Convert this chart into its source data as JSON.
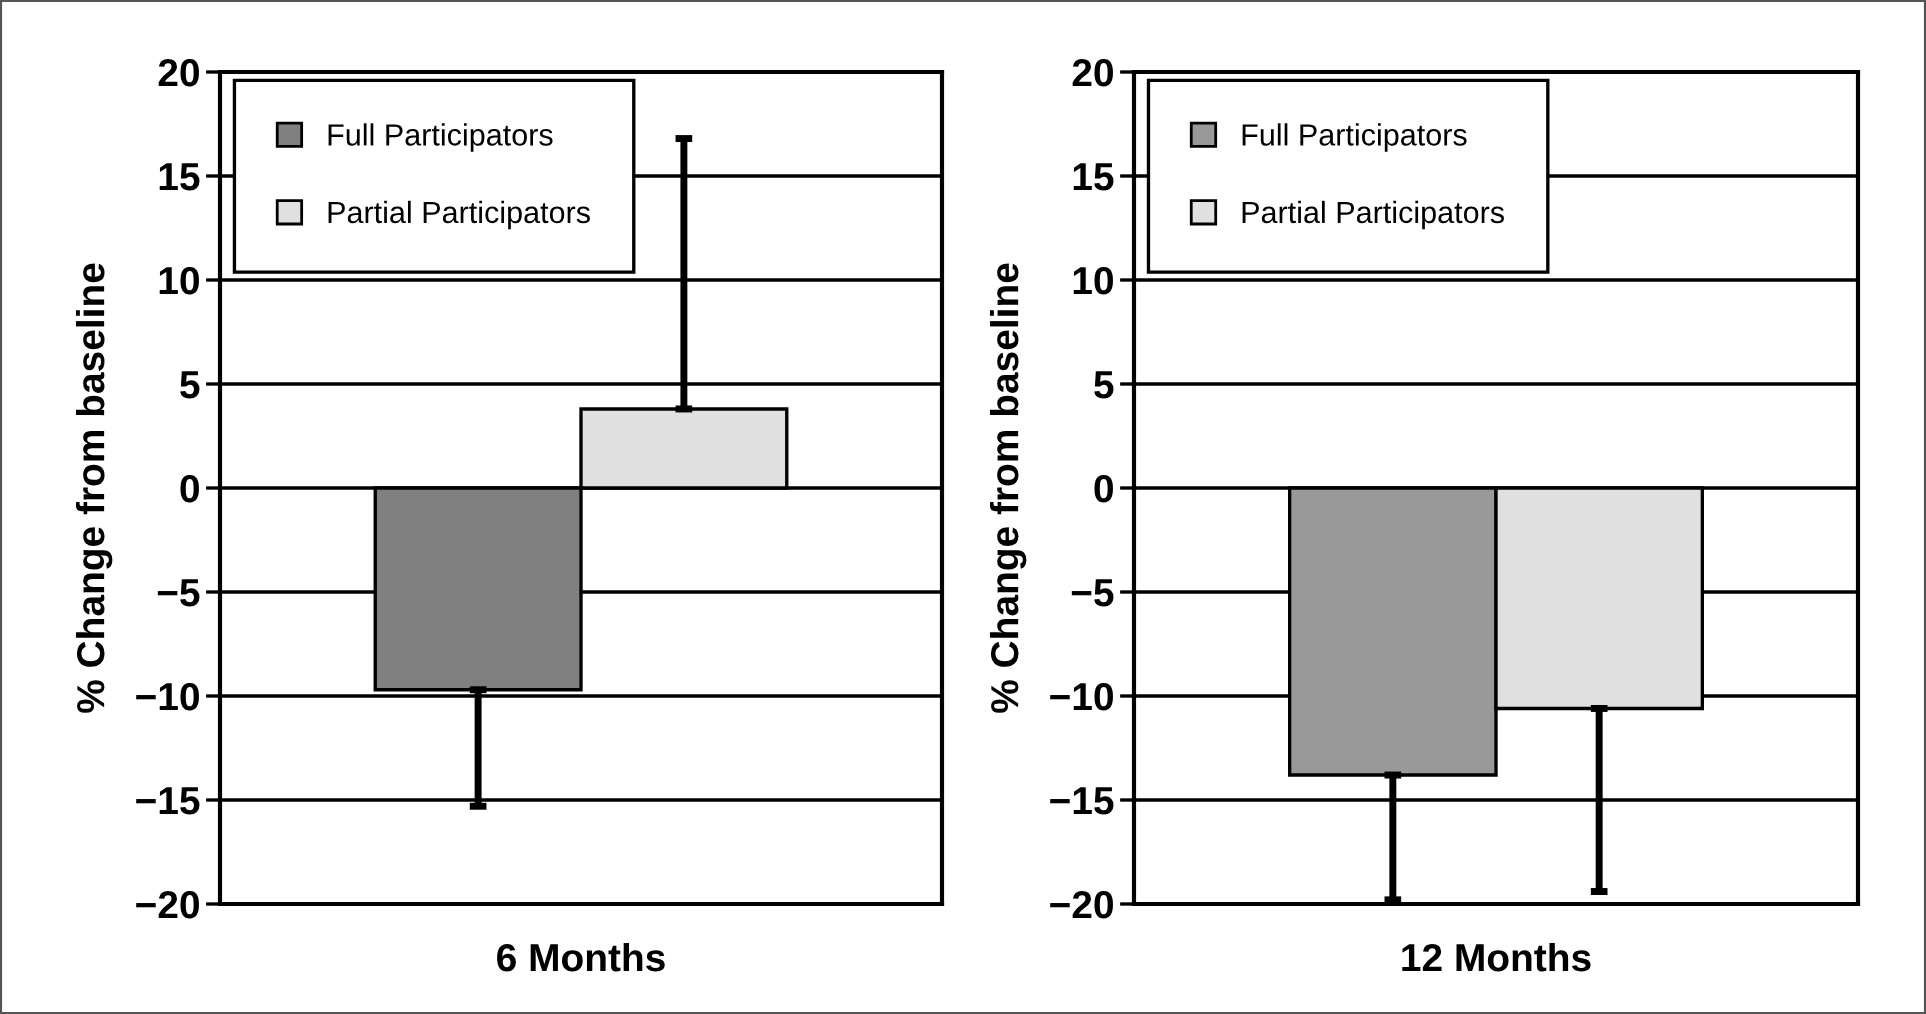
{
  "chart_data": [
    {
      "type": "bar",
      "categories": [
        "6 Months"
      ],
      "ylabel": "% Change from baseline",
      "ylim": [
        -20,
        20
      ],
      "yticks": [
        {
          "value": -20,
          "label": "−20"
        },
        {
          "value": -15,
          "label": "−15"
        },
        {
          "value": -10,
          "label": "−10"
        },
        {
          "value": -5,
          "label": "−5"
        },
        0,
        5,
        10,
        15,
        20
      ],
      "grid": "y",
      "legend": "top left",
      "series": [
        {
          "name": "Full Participators",
          "color": "#808080",
          "values": [
            -9.7
          ],
          "errors": [
            [
              -15.3,
              -9.7
            ]
          ]
        },
        {
          "name": "Partial Participators",
          "color": "#e0e0e0",
          "values": [
            3.8
          ],
          "errors": [
            [
              3.8,
              16.8
            ]
          ]
        }
      ]
    },
    {
      "type": "bar",
      "categories": [
        "12 Months"
      ],
      "ylabel": "% Change from baseline",
      "ylim": [
        -20,
        20
      ],
      "yticks": [
        {
          "value": -20,
          "label": "−20"
        },
        {
          "value": -15,
          "label": "−15"
        },
        {
          "value": -10,
          "label": "−10"
        },
        {
          "value": -5,
          "label": "−5"
        },
        0,
        5,
        10,
        15,
        20
      ],
      "grid": "y",
      "legend": "top left",
      "series": [
        {
          "name": "Full Participators",
          "color": "#999999",
          "values": [
            -13.8
          ],
          "errors": [
            [
              -19.8,
              -13.8
            ]
          ]
        },
        {
          "name": "Partial Participators",
          "color": "#e0e0e0",
          "values": [
            -10.6
          ],
          "errors": [
            [
              -19.4,
              -10.6
            ]
          ]
        }
      ]
    }
  ]
}
